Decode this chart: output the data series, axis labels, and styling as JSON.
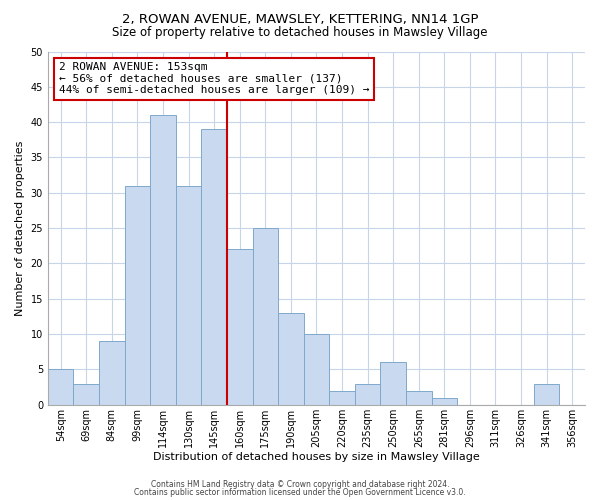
{
  "title_line1": "2, ROWAN AVENUE, MAWSLEY, KETTERING, NN14 1GP",
  "title_line2": "Size of property relative to detached houses in Mawsley Village",
  "xlabel": "Distribution of detached houses by size in Mawsley Village",
  "ylabel": "Number of detached properties",
  "bar_labels": [
    "54sqm",
    "69sqm",
    "84sqm",
    "99sqm",
    "114sqm",
    "130sqm",
    "145sqm",
    "160sqm",
    "175sqm",
    "190sqm",
    "205sqm",
    "220sqm",
    "235sqm",
    "250sqm",
    "265sqm",
    "281sqm",
    "296sqm",
    "311sqm",
    "326sqm",
    "341sqm",
    "356sqm"
  ],
  "bar_values": [
    5,
    3,
    9,
    31,
    41,
    31,
    39,
    22,
    25,
    13,
    10,
    2,
    3,
    6,
    2,
    1,
    0,
    0,
    0,
    3,
    0
  ],
  "bar_color": "#c8d9f0",
  "bar_edge_color": "#7fa8cc",
  "highlight_line_color": "#cc0000",
  "vline_bar_index": 6,
  "annotation_title": "2 ROWAN AVENUE: 153sqm",
  "annotation_line1": "← 56% of detached houses are smaller (137)",
  "annotation_line2": "44% of semi-detached houses are larger (109) →",
  "annotation_box_color": "#ffffff",
  "annotation_box_edge": "#cc0000",
  "ylim": [
    0,
    50
  ],
  "yticks": [
    0,
    5,
    10,
    15,
    20,
    25,
    30,
    35,
    40,
    45,
    50
  ],
  "footer_line1": "Contains HM Land Registry data © Crown copyright and database right 2024.",
  "footer_line2": "Contains public sector information licensed under the Open Government Licence v3.0.",
  "bg_color": "#ffffff",
  "grid_color": "#c8d4e8",
  "title1_fontsize": 9.5,
  "title2_fontsize": 8.5,
  "ylabel_fontsize": 8,
  "xlabel_fontsize": 8,
  "tick_fontsize": 7,
  "annot_fontsize": 8,
  "footer_fontsize": 5.5
}
